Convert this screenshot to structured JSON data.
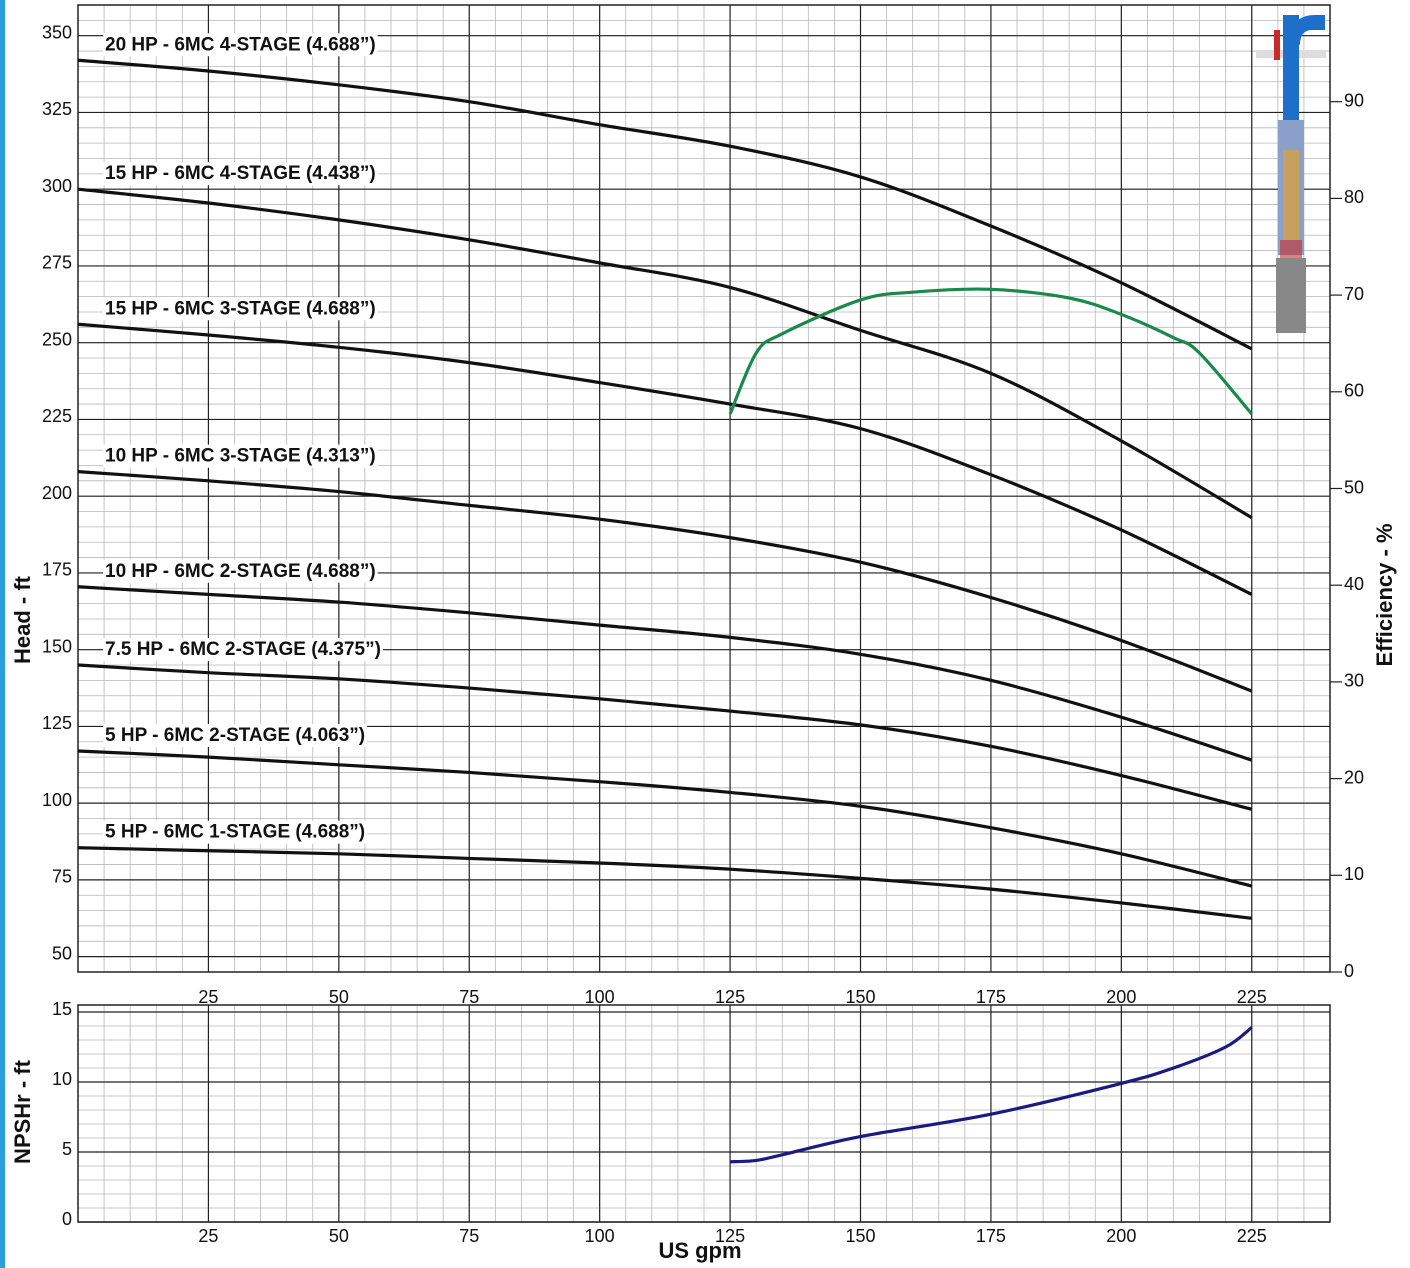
{
  "chart_data": [
    {
      "type": "line",
      "ylabel": "Head - ft",
      "y2label": "Efficiency - %",
      "xlim": [
        0,
        240
      ],
      "xticks": [
        25,
        50,
        75,
        100,
        125,
        150,
        175,
        200,
        225
      ],
      "ylim": [
        45,
        360
      ],
      "yticks": [
        50,
        75,
        100,
        125,
        150,
        175,
        200,
        225,
        250,
        275,
        300,
        325,
        350
      ],
      "y2lim": [
        0,
        100
      ],
      "y2ticks": [
        0,
        10,
        20,
        30,
        40,
        50,
        60,
        70,
        80,
        90
      ],
      "grid": true,
      "series": [
        {
          "name": "20 HP - 6MC 4-STAGE (4.688”)",
          "color": "#111111",
          "x": [
            0,
            25,
            50,
            75,
            100,
            125,
            150,
            175,
            200,
            225
          ],
          "values": [
            342,
            338.5,
            334,
            328.5,
            321,
            314,
            304,
            288,
            269.5,
            248
          ]
        },
        {
          "name": "15 HP - 6MC 4-STAGE (4.438”)",
          "color": "#111111",
          "x": [
            0,
            25,
            50,
            75,
            100,
            125,
            150,
            175,
            200,
            225
          ],
          "values": [
            300,
            295.5,
            290,
            283.5,
            276,
            268,
            254,
            240,
            218,
            193
          ]
        },
        {
          "name": "15 HP - 6MC 3-STAGE (4.688”)",
          "color": "#111111",
          "x": [
            0,
            25,
            50,
            75,
            100,
            125,
            150,
            175,
            200,
            225
          ],
          "values": [
            256,
            252.5,
            248.5,
            243.5,
            237,
            230,
            222,
            207,
            189,
            168
          ]
        },
        {
          "name": "10 HP - 6MC 3-STAGE (4.313”)",
          "color": "#111111",
          "x": [
            0,
            25,
            50,
            75,
            100,
            125,
            150,
            175,
            200,
            225
          ],
          "values": [
            208,
            205,
            201.5,
            197,
            192.5,
            186.5,
            178.5,
            167,
            153,
            136.5
          ]
        },
        {
          "name": "10 HP - 6MC 2-STAGE (4.688”)",
          "color": "#111111",
          "x": [
            0,
            25,
            50,
            75,
            100,
            125,
            150,
            175,
            200,
            225
          ],
          "values": [
            170.5,
            168,
            165.5,
            162,
            158,
            154,
            148.5,
            140,
            128,
            114
          ]
        },
        {
          "name": "7.5 HP - 6MC 2-STAGE (4.375”)",
          "color": "#111111",
          "x": [
            0,
            25,
            50,
            75,
            100,
            125,
            150,
            175,
            200,
            225
          ],
          "values": [
            145,
            142.5,
            140.5,
            137.5,
            134,
            130,
            125.5,
            118.5,
            109,
            98
          ]
        },
        {
          "name": "5 HP - 6MC 2-STAGE (4.063”)",
          "color": "#111111",
          "x": [
            0,
            25,
            50,
            75,
            100,
            125,
            150,
            175,
            200,
            225
          ],
          "values": [
            117,
            115,
            112.5,
            110,
            107,
            103.5,
            99,
            92,
            83.5,
            73
          ]
        },
        {
          "name": "5 HP - 6MC 1-STAGE (4.688”)",
          "color": "#111111",
          "x": [
            0,
            25,
            50,
            75,
            100,
            125,
            150,
            175,
            200,
            225
          ],
          "values": [
            85.5,
            84.5,
            83.5,
            82,
            80.5,
            78.5,
            75.5,
            72,
            67.5,
            62.5
          ]
        },
        {
          "color": "#1a8a4a",
          "axis": "y2",
          "x": [
            125,
            130,
            135,
            150,
            160,
            175,
            190,
            200,
            210,
            215,
            225
          ],
          "values": [
            57.7,
            64,
            66,
            69.5,
            70.3,
            70.6,
            69.7,
            68,
            65.6,
            64,
            57.7
          ]
        }
      ]
    },
    {
      "type": "line",
      "xlabel": "US gpm",
      "ylabel": "NPSHr - ft",
      "xlim": [
        0,
        240
      ],
      "xticks": [
        25,
        50,
        75,
        100,
        125,
        150,
        175,
        200,
        225
      ],
      "ylim": [
        0,
        15.5
      ],
      "yticks": [
        0,
        5,
        10,
        15
      ],
      "grid": true,
      "series": [
        {
          "color": "#1a1a80",
          "x": [
            125,
            130,
            135,
            150,
            175,
            200,
            210,
            220,
            225
          ],
          "values": [
            4.3,
            4.4,
            4.8,
            6.1,
            7.7,
            9.9,
            11,
            12.5,
            13.9
          ]
        }
      ]
    }
  ]
}
